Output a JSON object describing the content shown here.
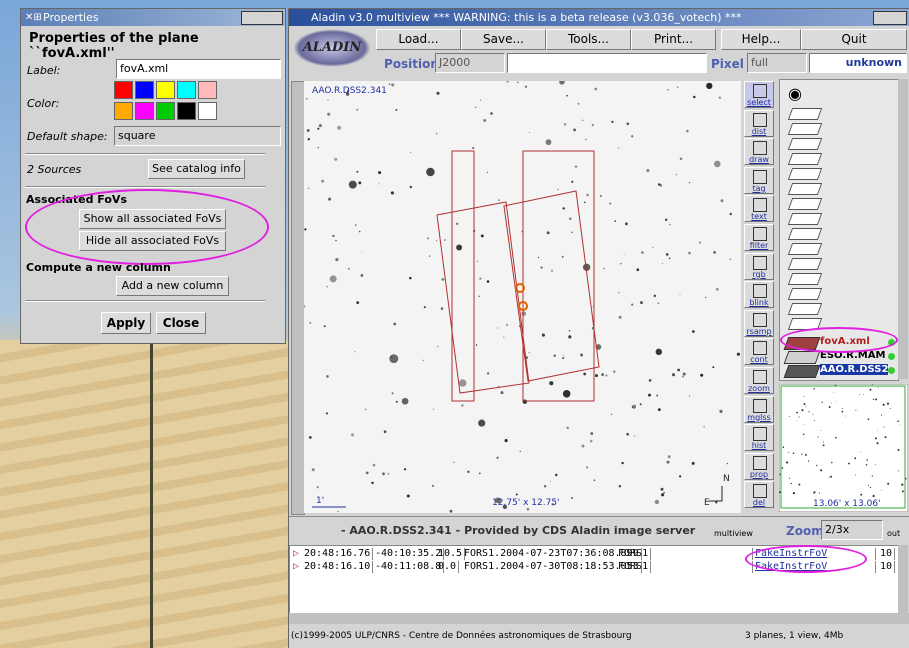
{
  "properties": {
    "title": "Properties",
    "heading": "Properties of the plane ``fovA.xml''",
    "label_caption": "Label:",
    "label_value": "fovA.xml",
    "color_caption": "Color:",
    "shape_caption": "Default shape:",
    "shape_value": "square",
    "sources": "2 Sources",
    "catalog_button": "See catalog info",
    "fov_section": "Associated FoVs",
    "show_button": "Show all associated FoVs",
    "hide_button": "Hide all associated FoVs",
    "column_section": "Compute a new column",
    "column_button": "Add a new column",
    "apply_button": "Apply",
    "close_button": "Close"
  },
  "aladin": {
    "title": "Aladin v3.0 multiview *** WARNING: this is a beta release (v3.036_votech) ***",
    "menu": [
      "Load...",
      "Save...",
      "Tools...",
      "Print...",
      "Help...",
      "Quit"
    ],
    "position_caption": "Position",
    "frame": "J2000",
    "pixel_caption": "Pixel",
    "pixel_mode": "full",
    "pixel_value": "unknown",
    "view": {
      "label": "AAO.R.DSS2.341",
      "scale": "1'",
      "size": "12.75' x 12.75'",
      "east": "E",
      "north": "N"
    },
    "tools": [
      "select",
      "dist",
      "draw",
      "tag",
      "text",
      "filter",
      "rgb",
      "blink",
      "rsamp",
      "cont",
      "zoom",
      "mglss",
      "hist",
      "prop",
      "del"
    ],
    "planes": [
      "fovA.xml",
      "ESO.R.MAM",
      "AAO.R.DSS2."
    ],
    "preview_size": "13.06' x 13.06'",
    "status": "- AAO.R.DSS2.341 - Provided by CDS Aladin image server",
    "multiview": "multiview",
    "zoom_caption": "Zoom",
    "zoom_value": "2/3x",
    "zoom_out": "out",
    "measurements": {
      "rows": [
        [
          "20:48:16.76",
          "-40:10:35.2",
          "10.5",
          "FORS1.2004-07-23T07:36:08.899",
          "FORS1",
          "FakeInstrFoV",
          "10"
        ],
        [
          "20:48:16.10",
          "-40:11:08.8",
          "0.0",
          "FORS1.2004-07-30T08:18:53.053",
          "FORS1",
          "FakeInstrFoV",
          "10"
        ]
      ]
    },
    "copyright": "(c)1999-2005 ULP/CNRS - Centre de Données astronomiques de Strasbourg",
    "summary": "3 planes, 1 view, 4Mb"
  }
}
